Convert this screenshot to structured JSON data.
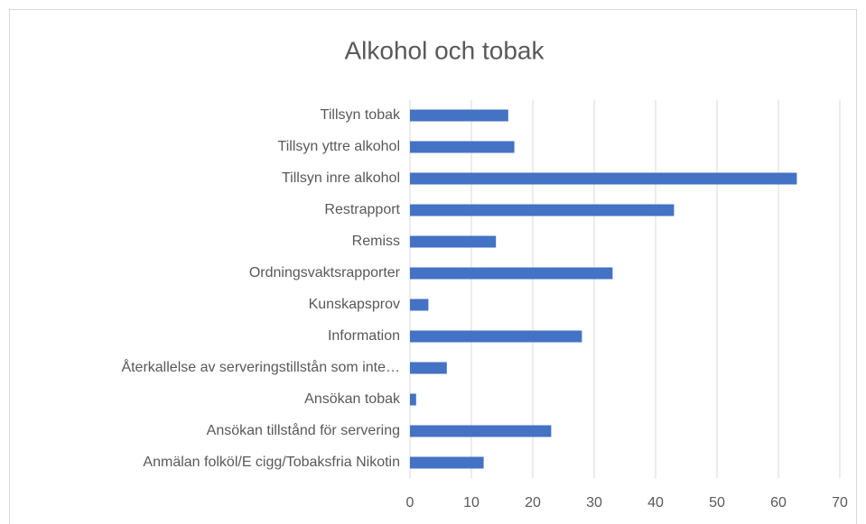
{
  "chart_data": {
    "type": "barh",
    "title": "Alkohol och tobak",
    "categories": [
      "Tillsyn tobak",
      "Tillsyn yttre alkohol",
      "Tillsyn inre alkohol",
      "Restrapport",
      "Remiss",
      "Ordningsvaktsrapporter",
      "Kunskapsprov",
      "Information",
      "Återkallelse av serveringstillstån som inte…",
      "Ansökan tobak",
      "Ansökan tillstånd för servering",
      "Anmälan folköl/E cigg/Tobaksfria Nikotin"
    ],
    "values": [
      16,
      17,
      63,
      43,
      14,
      33,
      3,
      28,
      6,
      1,
      23,
      12
    ],
    "color": "#4472c4",
    "xlim": [
      0,
      70
    ],
    "xticks": [
      0,
      10,
      20,
      30,
      40,
      50,
      60,
      70
    ],
    "grid": true
  }
}
